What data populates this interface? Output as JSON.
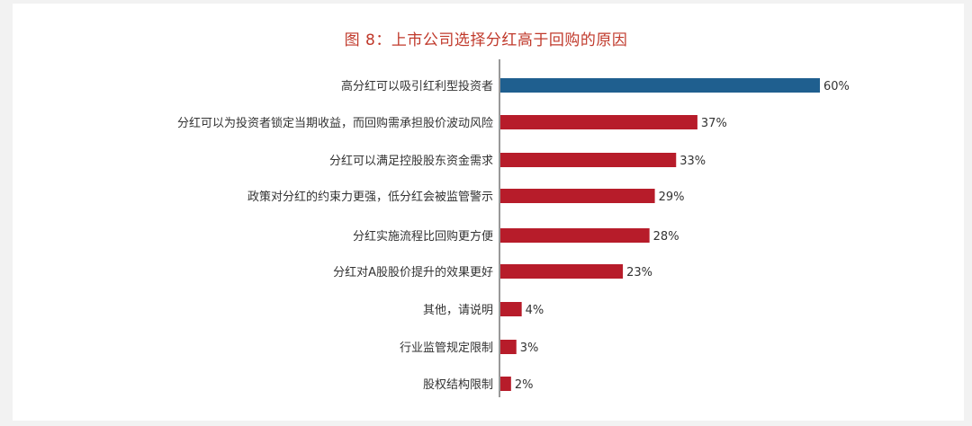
{
  "title": "图 8：上市公司选择分红高于回购的原因",
  "colors": {
    "highlight": "#1f5f8f",
    "bar": "#b71c2a",
    "title": "#c0392b"
  },
  "chart_data": {
    "type": "bar",
    "orientation": "horizontal",
    "title": "图 8：上市公司选择分红高于回购的原因",
    "categories": [
      "高分红可以吸引红利型投资者",
      "分红可以为投资者锁定当期收益，而回购需承担股价波动风险",
      "分红可以满足控股股东资金需求",
      "政策对分红的约束力更强，低分红会被监管警示",
      "分红实施流程比回购更方便",
      "分红对A股股价提升的效果更好",
      "其他，请说明",
      "行业监管规定限制",
      "股权结构限制"
    ],
    "values": [
      60,
      37,
      33,
      29,
      28,
      23,
      4,
      3,
      2
    ],
    "value_labels": [
      "60%",
      "37%",
      "33%",
      "29%",
      "28%",
      "23%",
      "4%",
      "3%",
      "2%"
    ],
    "unit": "%",
    "highlight_index": 0,
    "grid": false,
    "legend": false
  }
}
